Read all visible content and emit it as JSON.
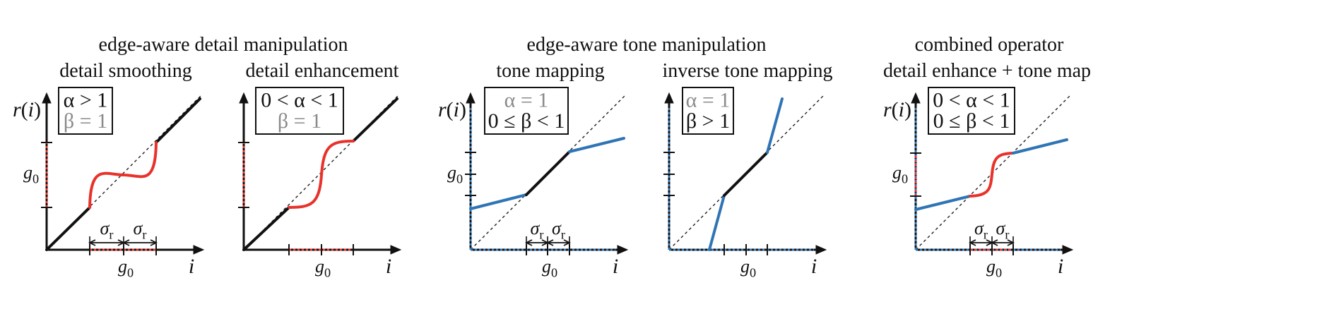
{
  "groups": {
    "detail": "edge-aware detail manipulation",
    "tone": "edge-aware tone manipulation",
    "combined": "combined operator"
  },
  "panels": [
    {
      "id": "detail-smoothing",
      "title": "detail smoothing",
      "params": [
        {
          "text": "α > 1",
          "active": true
        },
        {
          "text": "β = 1",
          "active": false
        }
      ]
    },
    {
      "id": "detail-enhancement",
      "title": "detail enhancement",
      "params": [
        {
          "text": "0 < α < 1",
          "active": true
        },
        {
          "text": "β = 1",
          "active": false
        }
      ]
    },
    {
      "id": "tone-mapping",
      "title": "tone mapping",
      "params": [
        {
          "text": "α = 1",
          "active": false
        },
        {
          "text": "0 ≤ β < 1",
          "active": true
        }
      ]
    },
    {
      "id": "inverse-tone-mapping",
      "title": "inverse tone mapping",
      "params": [
        {
          "text": "α = 1",
          "active": false
        },
        {
          "text": "β > 1",
          "active": true
        }
      ]
    },
    {
      "id": "combined",
      "title": "detail enhance + tone map",
      "params": [
        {
          "text": "0 < α < 1",
          "active": true
        },
        {
          "text": "0 ≤ β < 1",
          "active": true
        }
      ]
    }
  ],
  "axis": {
    "y_label": "r(i)",
    "x_label": "i",
    "g0": "g0",
    "sigma": "σr"
  },
  "colors": {
    "red": "#e8322b",
    "blue": "#2f74b5",
    "black": "#111111",
    "gray": "#8a8a8a"
  }
}
